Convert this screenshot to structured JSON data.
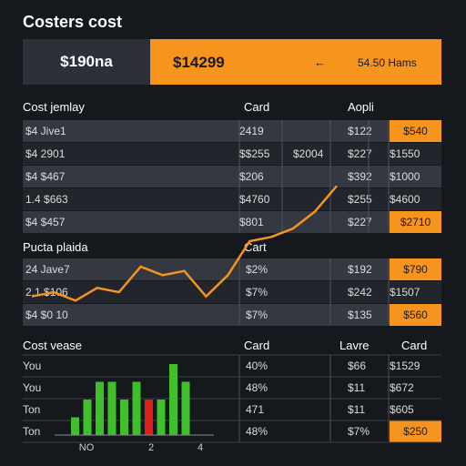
{
  "header": {
    "title": "Costers cost"
  },
  "summary": {
    "left_value": "$190na",
    "right_value": "$14299",
    "right_arrow": "←",
    "right_note": "54.50 Hams"
  },
  "section1": {
    "headers": [
      "Cost jemlay",
      "Card",
      "Aopli"
    ],
    "rows": [
      [
        "$4 Jive1",
        "2419",
        "",
        "$122",
        "$540"
      ],
      [
        "$4 2901",
        "$$255",
        "$2004",
        "$227",
        "$1550"
      ],
      [
        "$4 $467",
        "$206",
        "",
        "$392",
        "$1000"
      ],
      [
        "1.4 $663",
        "$4760",
        "",
        "$255",
        "$4600"
      ],
      [
        "$4 $457",
        "$801",
        "",
        "$227",
        "$2710"
      ]
    ],
    "orange_cells": [
      0,
      4
    ]
  },
  "section2": {
    "headers": [
      "Pucta plaida",
      "Cart"
    ],
    "rows": [
      [
        "24 Jave7",
        "$2%",
        "$192",
        "$790"
      ],
      [
        "2.1 $106",
        "$7%",
        "$242",
        "$1507"
      ],
      [
        "$4 $0 10",
        "$7%",
        "$135",
        "$560"
      ]
    ],
    "orange_cells": [
      0,
      2
    ]
  },
  "section3": {
    "headers": [
      "Cost vease",
      "Card",
      "Lavre",
      "Card"
    ],
    "rows": [
      [
        "You",
        "40%",
        "$66",
        "$1529"
      ],
      [
        "You",
        "48%",
        "$11",
        "$672"
      ],
      [
        "Ton",
        "471",
        "$11",
        "$605"
      ],
      [
        "Ton",
        "48%",
        "$7%",
        "$250"
      ]
    ],
    "orange_cells": [
      3
    ]
  },
  "colors": {
    "accent": "#f7941d",
    "bar_green": "#3fbf2a",
    "bar_red": "#e01e1e",
    "background": "#15181d"
  },
  "chart_data": [
    {
      "type": "line",
      "x": [
        1,
        2,
        3,
        4,
        5,
        6,
        7,
        8,
        9,
        10,
        11,
        12,
        13,
        14,
        15
      ],
      "series": [
        {
          "values": [
            2,
            3,
            1,
            4,
            3,
            9,
            7,
            8,
            2,
            7,
            15,
            16,
            18,
            22,
            28
          ]
        }
      ]
    },
    {
      "type": "bar",
      "x_tick_labels": [
        "NO",
        "2",
        "4"
      ],
      "values": [
        1,
        2,
        3,
        3,
        2,
        3,
        2,
        2,
        4,
        3
      ],
      "colors": [
        "green",
        "green",
        "green",
        "green",
        "green",
        "green",
        "red",
        "green",
        "green",
        "green"
      ]
    }
  ]
}
